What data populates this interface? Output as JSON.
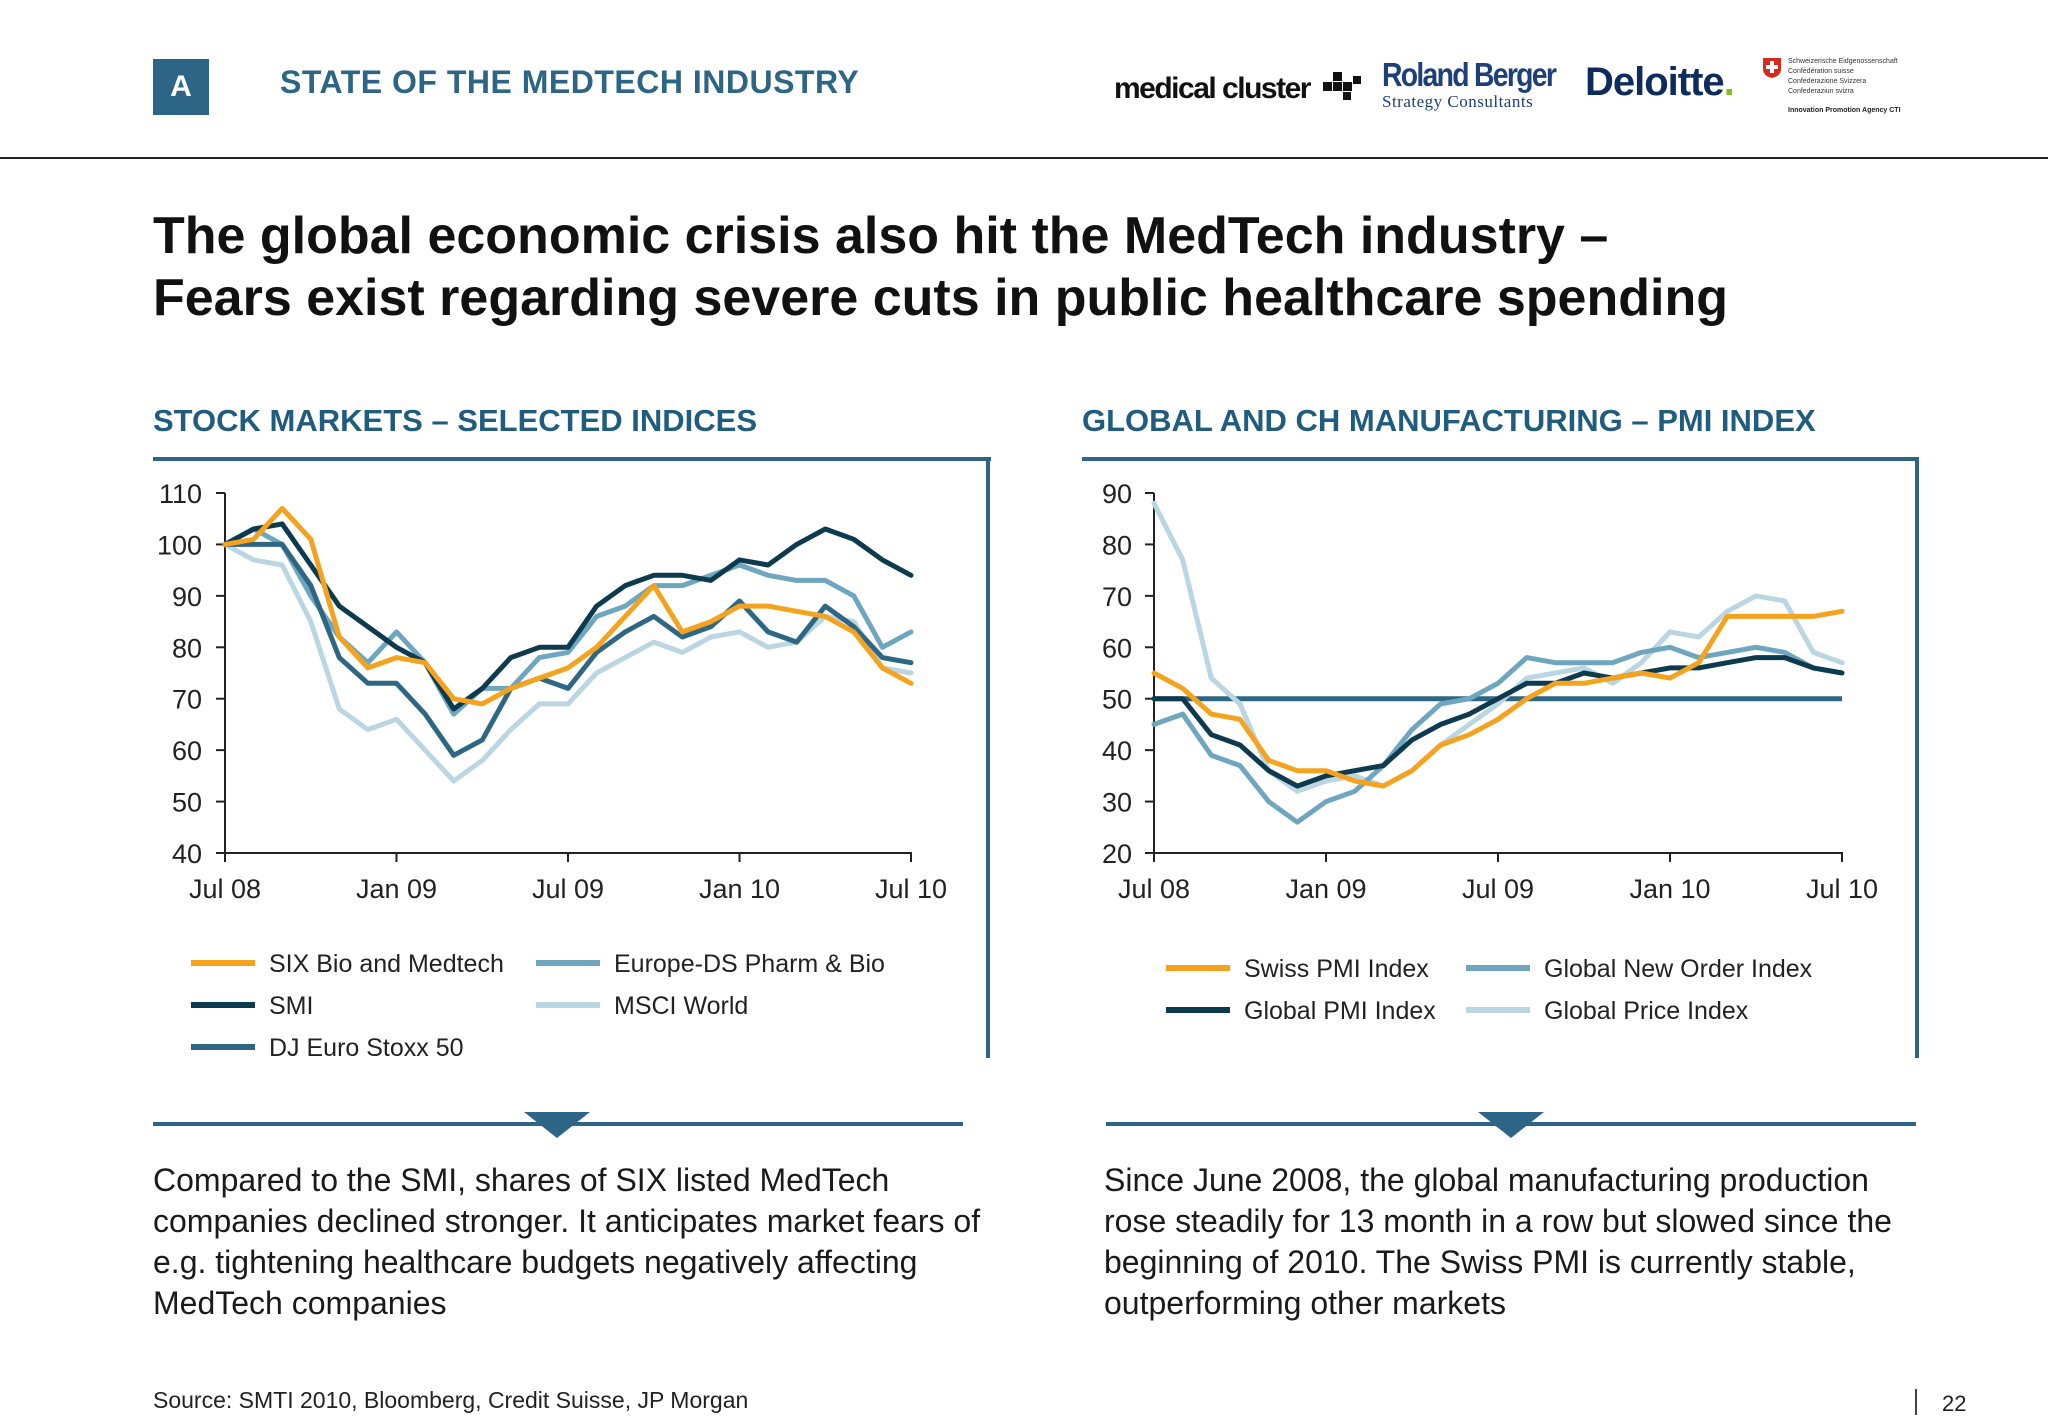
{
  "header": {
    "section_letter": "A",
    "section_title": "STATE OF THE MEDTECH INDUSTRY",
    "logos": {
      "medical_cluster": "medical cluster",
      "roland_berger": "Roland Berger",
      "roland_berger_sub": "Strategy Consultants",
      "deloitte": "Deloitte",
      "deloitte_dot": ".",
      "swiss_lines": [
        "Schweizerische Eidgenossenschaft",
        "Confédération suisse",
        "Confederazione Svizzera",
        "Confederaziun svizra"
      ],
      "swiss_agency": "Innovation Promotion Agency CTI"
    }
  },
  "headline": {
    "line1": "The global economic crisis also hit the MedTech industry –",
    "line2": "Fears exist regarding severe cuts in public healthcare spending"
  },
  "colors": {
    "accent": "#2c6585",
    "six": "#f5a31f",
    "smi": "#0c3a4f",
    "euro_pharma": "#6fa6bf",
    "msci": "#b9d6e2",
    "dj_stoxx": "#2e6784",
    "swiss_pmi": "#f5a31f",
    "global_pmi": "#0c3a4f",
    "new_order": "#6fa6bf",
    "price": "#b9d6e2",
    "threshold": "#2e6784"
  },
  "chart_data": [
    {
      "type": "line",
      "title": "STOCK MARKETS – SELECTED INDICES",
      "xlabel": "",
      "ylabel": "",
      "ylim": [
        40,
        110
      ],
      "y_ticks": [
        110,
        100,
        90,
        80,
        70,
        60,
        50,
        40
      ],
      "x_tick_labels": [
        "Jul 08",
        "Jan 09",
        "Jul 09",
        "Jan 10",
        "Jul 10"
      ],
      "x_range": [
        "2008-07",
        "2010-07"
      ],
      "legend_position": "bottom",
      "grid": false,
      "series": [
        {
          "name": "SIX Bio and Medtech",
          "color_key": "six",
          "values": [
            100,
            101,
            107,
            101,
            82,
            76,
            78,
            77,
            70,
            69,
            72,
            74,
            76,
            80,
            86,
            92,
            83,
            85,
            88,
            88,
            87,
            86,
            83,
            76,
            73
          ]
        },
        {
          "name": "SMI",
          "color_key": "smi",
          "values": [
            100,
            103,
            104,
            96,
            88,
            84,
            80,
            77,
            68,
            72,
            78,
            80,
            80,
            88,
            92,
            94,
            94,
            93,
            97,
            96,
            100,
            103,
            101,
            97,
            94
          ]
        },
        {
          "name": "DJ Euro Stoxx 50",
          "color_key": "dj_stoxx",
          "values": [
            100,
            100,
            100,
            92,
            78,
            73,
            73,
            67,
            59,
            62,
            72,
            74,
            72,
            79,
            83,
            86,
            82,
            84,
            89,
            83,
            81,
            88,
            84,
            78,
            77
          ]
        },
        {
          "name": "Europe-DS Pharm & Bio",
          "color_key": "euro_pharma",
          "values": [
            100,
            103,
            100,
            90,
            82,
            77,
            83,
            77,
            67,
            72,
            72,
            78,
            79,
            86,
            88,
            92,
            92,
            94,
            96,
            94,
            93,
            93,
            90,
            80,
            83
          ]
        },
        {
          "name": "MSCI World",
          "color_key": "msci",
          "values": [
            100,
            97,
            96,
            85,
            68,
            64,
            66,
            60,
            54,
            58,
            64,
            69,
            69,
            75,
            78,
            81,
            79,
            82,
            83,
            80,
            81,
            86,
            85,
            76,
            75
          ]
        }
      ]
    },
    {
      "type": "line",
      "title": "GLOBAL AND CH MANUFACTURING – PMI INDEX",
      "xlabel": "",
      "ylabel": "",
      "ylim": [
        20,
        90
      ],
      "y_ticks": [
        90,
        80,
        70,
        60,
        50,
        40,
        30,
        20
      ],
      "x_tick_labels": [
        "Jul 08",
        "Jan 09",
        "Jul 09",
        "Jan 10",
        "Jul 10"
      ],
      "x_range": [
        "2008-07",
        "2010-07"
      ],
      "reference_line": 50,
      "legend_position": "bottom",
      "grid": false,
      "series": [
        {
          "name": "Swiss PMI Index",
          "color_key": "swiss_pmi",
          "values": [
            55,
            52,
            47,
            46,
            38,
            36,
            36,
            34,
            33,
            36,
            41,
            43,
            46,
            50,
            53,
            53,
            54,
            55,
            54,
            57,
            66,
            66,
            66,
            66,
            67
          ]
        },
        {
          "name": "Global PMI Index",
          "color_key": "global_pmi",
          "values": [
            50,
            50,
            43,
            41,
            36,
            33,
            35,
            36,
            37,
            42,
            45,
            47,
            50,
            53,
            53,
            55,
            54,
            55,
            56,
            56,
            57,
            58,
            58,
            56,
            55
          ]
        },
        {
          "name": "Global New Order Index",
          "color_key": "new_order",
          "values": [
            45,
            47,
            39,
            37,
            30,
            26,
            30,
            32,
            37,
            44,
            49,
            50,
            53,
            58,
            57,
            57,
            57,
            59,
            60,
            58,
            59,
            60,
            59,
            56,
            55
          ]
        },
        {
          "name": "Global Price Index",
          "color_key": "price",
          "values": [
            88,
            77,
            54,
            49,
            36,
            32,
            34,
            35,
            33,
            36,
            41,
            45,
            49,
            54,
            55,
            56,
            53,
            57,
            63,
            62,
            67,
            70,
            69,
            59,
            57
          ]
        }
      ]
    }
  ],
  "captions": {
    "left": "Compared to the SMI, shares of SIX listed MedTech companies declined stronger. It anticipates market fears of e.g. tightening healthcare budgets negatively affecting MedTech companies",
    "right": "Since June 2008, the global manufacturing production rose steadily for 13 month in a row but slowed since the beginning of 2010. The Swiss PMI is currently stable, outperforming other markets"
  },
  "footer": {
    "source": "Source:  SMTI 2010, Bloomberg, Credit Suisse, JP Morgan",
    "page_number": "22"
  }
}
